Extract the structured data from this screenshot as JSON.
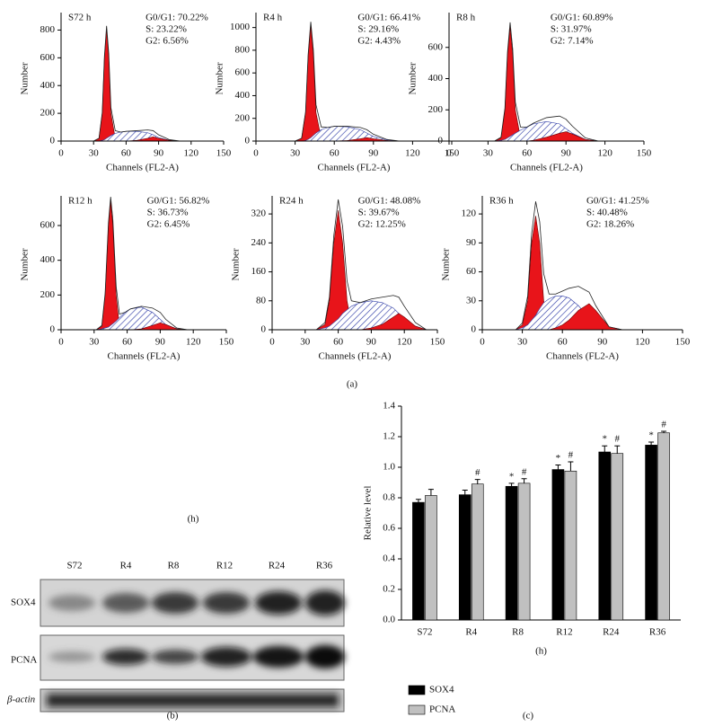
{
  "captions": {
    "a": "(a)",
    "h": "(h)",
    "b": "(b)",
    "c": "(c)"
  },
  "blot": {
    "lanes": [
      "S72",
      "R4",
      "R8",
      "R12",
      "R24",
      "R36"
    ],
    "rows": [
      "SOX4",
      "PCNA",
      "β-actin"
    ]
  },
  "chart_data": [
    {
      "type": "area",
      "title": "S72 h",
      "annotations": [
        "G0/G1: 70.22%",
        "S: 23.22%",
        "G2: 6.56%"
      ],
      "xlabel": "Channels (FL2-A)",
      "ylabel": "Number",
      "x": [
        30,
        35,
        38,
        40,
        42,
        44,
        46,
        50,
        55,
        60,
        70,
        80,
        85,
        90,
        100,
        110
      ],
      "series": [
        {
          "color": "#e8141a",
          "values": [
            0,
            20,
            200,
            600,
            810,
            600,
            200,
            20,
            0,
            0,
            0,
            0,
            0,
            0,
            0,
            0
          ]
        },
        {
          "color": "#3340a8",
          "hatch": true,
          "values": [
            0,
            0,
            5,
            10,
            20,
            30,
            40,
            55,
            65,
            70,
            70,
            60,
            45,
            25,
            5,
            0
          ]
        },
        {
          "color": "#e8141a",
          "values": [
            0,
            0,
            0,
            0,
            0,
            0,
            0,
            0,
            0,
            0,
            5,
            20,
            30,
            20,
            5,
            0
          ]
        }
      ],
      "xlim": [
        0,
        150
      ],
      "xticks": [
        0,
        30,
        60,
        90,
        120,
        150
      ],
      "ylim": [
        0,
        900
      ],
      "yticks": [
        0,
        200,
        400,
        600,
        800
      ]
    },
    {
      "type": "area",
      "title": "R4 h",
      "annotations": [
        "G0/G1: 66.41%",
        "S: 29.16%",
        "G2: 4.43%"
      ],
      "xlabel": "Channels (FL2-A)",
      "ylabel": "Number",
      "x": [
        30,
        35,
        38,
        40,
        42,
        44,
        46,
        50,
        55,
        60,
        70,
        80,
        85,
        90,
        100,
        110
      ],
      "series": [
        {
          "color": "#e8141a",
          "values": [
            0,
            25,
            250,
            750,
            1020,
            750,
            250,
            25,
            0,
            0,
            0,
            0,
            0,
            0,
            0,
            0
          ]
        },
        {
          "color": "#3340a8",
          "hatch": true,
          "values": [
            0,
            0,
            5,
            15,
            30,
            50,
            70,
            100,
            120,
            130,
            125,
            100,
            70,
            40,
            10,
            0
          ]
        },
        {
          "color": "#e8141a",
          "values": [
            0,
            0,
            0,
            0,
            0,
            0,
            0,
            0,
            0,
            0,
            5,
            20,
            30,
            20,
            5,
            0
          ]
        }
      ],
      "xlim": [
        0,
        150
      ],
      "xticks": [
        0,
        30,
        60,
        90,
        120,
        150
      ],
      "ylim": [
        0,
        1100
      ],
      "yticks": [
        0,
        200,
        400,
        600,
        800,
        1000
      ]
    },
    {
      "type": "area",
      "title": "R8 h",
      "annotations": [
        "G0/G1: 60.89%",
        "S: 31.97%",
        "G2: 7.14%"
      ],
      "xlabel": "Channels (FL2-A)",
      "ylabel": "Number",
      "x": [
        35,
        40,
        43,
        45,
        47,
        49,
        51,
        55,
        60,
        65,
        75,
        85,
        90,
        95,
        105,
        115
      ],
      "series": [
        {
          "color": "#e8141a",
          "values": [
            0,
            20,
            200,
            550,
            730,
            550,
            200,
            20,
            0,
            0,
            0,
            0,
            0,
            0,
            0,
            0
          ]
        },
        {
          "color": "#3340a8",
          "hatch": true,
          "values": [
            0,
            5,
            10,
            20,
            30,
            40,
            50,
            70,
            90,
            110,
            125,
            110,
            80,
            50,
            10,
            0
          ]
        },
        {
          "color": "#e8141a",
          "values": [
            0,
            0,
            0,
            0,
            0,
            0,
            0,
            0,
            0,
            5,
            25,
            50,
            60,
            45,
            10,
            0
          ]
        }
      ],
      "xlim": [
        0,
        150
      ],
      "xticks": [
        0,
        30,
        60,
        90,
        120,
        150
      ],
      "ylim": [
        0,
        800
      ],
      "yticks": [
        0,
        200,
        400,
        600
      ]
    },
    {
      "type": "area",
      "title": "R12 h",
      "annotations": [
        "G0/G1: 56.82%",
        "S: 36.73%",
        "G2: 6.45%"
      ],
      "xlabel": "Channels (FL2-A)",
      "ylabel": "Number",
      "x": [
        32,
        37,
        40,
        43,
        45,
        47,
        50,
        53,
        58,
        63,
        73,
        83,
        90,
        95,
        105,
        115
      ],
      "series": [
        {
          "color": "#e8141a",
          "values": [
            0,
            20,
            200,
            600,
            740,
            600,
            200,
            20,
            0,
            0,
            0,
            0,
            0,
            0,
            0,
            0
          ]
        },
        {
          "color": "#3340a8",
          "hatch": true,
          "values": [
            0,
            5,
            10,
            15,
            25,
            35,
            50,
            70,
            100,
            120,
            130,
            100,
            60,
            30,
            5,
            0
          ]
        },
        {
          "color": "#e8141a",
          "values": [
            0,
            0,
            0,
            0,
            0,
            0,
            0,
            0,
            0,
            0,
            5,
            25,
            40,
            30,
            5,
            0
          ]
        }
      ],
      "xlim": [
        0,
        150
      ],
      "xticks": [
        0,
        30,
        60,
        90,
        120,
        150
      ],
      "ylim": [
        0,
        750
      ],
      "yticks": [
        0,
        200,
        400,
        600
      ]
    },
    {
      "type": "area",
      "title": "R24 h",
      "annotations": [
        "G0/G1: 48.08%",
        "S: 39.67%",
        "G2: 12.25%"
      ],
      "xlabel": "Channels (FL2-A)",
      "ylabel": "Number",
      "x": [
        40,
        48,
        52,
        56,
        60,
        64,
        68,
        72,
        80,
        90,
        100,
        110,
        115,
        120,
        130,
        140
      ],
      "series": [
        {
          "color": "#e8141a",
          "values": [
            0,
            15,
            80,
            240,
            330,
            240,
            80,
            15,
            0,
            0,
            0,
            0,
            0,
            0,
            0,
            0
          ]
        },
        {
          "color": "#3340a8",
          "hatch": true,
          "values": [
            0,
            5,
            10,
            20,
            30,
            45,
            55,
            65,
            75,
            80,
            75,
            60,
            45,
            30,
            10,
            0
          ]
        },
        {
          "color": "#e8141a",
          "values": [
            0,
            0,
            0,
            0,
            0,
            0,
            0,
            0,
            0,
            5,
            15,
            35,
            45,
            35,
            10,
            0
          ]
        }
      ],
      "xlim": [
        0,
        150
      ],
      "xticks": [
        0,
        30,
        60,
        90,
        120,
        150
      ],
      "ylim": [
        0,
        360
      ],
      "yticks": [
        0,
        80,
        160,
        240,
        320
      ]
    },
    {
      "type": "area",
      "title": "R36 h",
      "annotations": [
        "G0/G1: 41.25%",
        "S: 40.48%",
        "G2: 18.26%"
      ],
      "xlabel": "Channels (FL2-A)",
      "ylabel": "Number",
      "x": [
        25,
        30,
        34,
        37,
        40,
        43,
        46,
        50,
        55,
        60,
        65,
        72,
        80,
        85,
        95,
        105
      ],
      "series": [
        {
          "color": "#e8141a",
          "values": [
            0,
            5,
            30,
            90,
            118,
            90,
            30,
            5,
            0,
            0,
            0,
            0,
            0,
            0,
            0,
            0
          ]
        },
        {
          "color": "#3340a8",
          "hatch": true,
          "values": [
            0,
            2,
            5,
            10,
            15,
            22,
            28,
            32,
            35,
            35,
            33,
            25,
            12,
            5,
            0,
            0
          ]
        },
        {
          "color": "#e8141a",
          "values": [
            0,
            0,
            0,
            0,
            0,
            0,
            0,
            0,
            2,
            5,
            10,
            20,
            27,
            20,
            3,
            0
          ]
        }
      ],
      "xlim": [
        0,
        150
      ],
      "xticks": [
        0,
        30,
        60,
        90,
        120,
        150
      ],
      "ylim": [
        0,
        135
      ],
      "yticks": [
        0,
        30,
        60,
        90,
        120
      ]
    },
    {
      "type": "bar",
      "xlabel": "(h)",
      "ylabel": "Relative level",
      "categories": [
        "S72",
        "R4",
        "R8",
        "R12",
        "R24",
        "R36"
      ],
      "series": [
        {
          "name": "SOX4",
          "color": "#000000",
          "values": [
            0.77,
            0.82,
            0.875,
            0.985,
            1.1,
            1.145
          ],
          "errors": [
            0.02,
            0.03,
            0.02,
            0.03,
            0.04,
            0.02
          ],
          "markers": [
            null,
            null,
            "*",
            "*",
            "*",
            "*"
          ]
        },
        {
          "name": "PCNA",
          "color": "#c0c0c0",
          "values": [
            0.815,
            0.89,
            0.895,
            0.975,
            1.09,
            1.225
          ],
          "errors": [
            0.04,
            0.03,
            0.03,
            0.06,
            0.05,
            0.01
          ],
          "markers": [
            null,
            "#",
            "#",
            "#",
            "#",
            "#"
          ]
        }
      ],
      "ylim": [
        0,
        1.4
      ],
      "yticks": [
        {
          "value": 0,
          "label": "0.0"
        },
        {
          "value": 0.2,
          "label": "0.2"
        },
        {
          "value": 0.4,
          "label": "0.4"
        },
        {
          "value": 0.6,
          "label": "0.6"
        },
        {
          "value": 0.8,
          "label": "0.8"
        },
        {
          "value": 1.0,
          "label": "1.0"
        },
        {
          "value": 1.2,
          "label": "1.2"
        },
        {
          "value": 1.4,
          "label": "1.4"
        }
      ]
    }
  ]
}
